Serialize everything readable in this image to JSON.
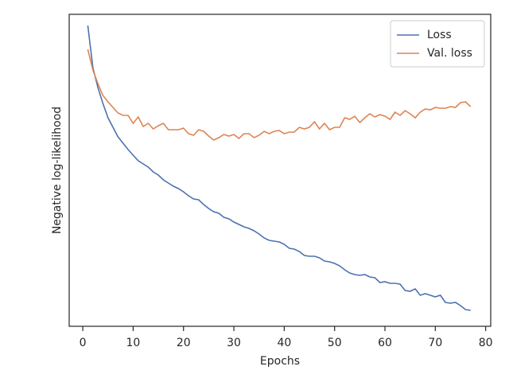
{
  "chart_data": {
    "type": "line",
    "xlabel": "Epochs",
    "ylabel": "Negative log-likelihood",
    "x": [
      1,
      2,
      3,
      4,
      5,
      6,
      7,
      8,
      9,
      10,
      11,
      12,
      13,
      14,
      15,
      16,
      17,
      18,
      19,
      20,
      21,
      22,
      23,
      24,
      25,
      26,
      27,
      28,
      29,
      30,
      31,
      32,
      33,
      34,
      35,
      36,
      37,
      38,
      39,
      40,
      41,
      42,
      43,
      44,
      45,
      46,
      47,
      48,
      49,
      50,
      51,
      52,
      53,
      54,
      55,
      56,
      57,
      58,
      59,
      60,
      61,
      62,
      63,
      64,
      65,
      66,
      67,
      68,
      69,
      70,
      71,
      72,
      73,
      74,
      75,
      76,
      77
    ],
    "series": [
      {
        "name": "Loss",
        "color": "#4c72b0",
        "values": [
          378,
          325,
          300,
          280,
          262,
          250,
          238,
          230,
          222,
          215,
          208,
          204,
          200,
          194,
          190,
          184,
          180,
          176,
          173,
          169,
          164,
          160,
          159,
          153,
          148,
          144,
          142,
          137,
          135,
          131,
          128,
          125,
          123,
          120,
          116,
          111,
          108,
          107,
          106,
          103,
          98,
          97,
          94,
          89,
          88,
          88,
          86,
          82,
          81,
          79,
          76,
          71,
          67,
          65,
          64,
          65,
          62,
          61,
          55,
          56,
          54,
          54,
          53,
          45,
          44,
          47,
          39,
          41,
          39,
          37,
          39,
          30,
          29,
          30,
          26,
          21,
          20
        ]
      },
      {
        "name": "Val. loss",
        "color": "#dd8452",
        "values": [
          348,
          322,
          305,
          290,
          282,
          275,
          268,
          265,
          265,
          255,
          263,
          251,
          255,
          248,
          252,
          255,
          247,
          247,
          247,
          249,
          242,
          240,
          247,
          245,
          239,
          234,
          237,
          241,
          239,
          241,
          236,
          242,
          242,
          237,
          240,
          245,
          242,
          245,
          246,
          242,
          244,
          244,
          250,
          248,
          250,
          257,
          248,
          255,
          247,
          250,
          250,
          262,
          260,
          264,
          256,
          262,
          267,
          263,
          266,
          264,
          260,
          269,
          265,
          271,
          267,
          262,
          269,
          273,
          272,
          275,
          274,
          274,
          276,
          275,
          281,
          282,
          276
        ]
      }
    ],
    "xlim": [
      -2.7,
      81
    ],
    "xticks": [
      0,
      10,
      20,
      30,
      40,
      50,
      60,
      70,
      80
    ],
    "ylim": [
      0,
      392
    ],
    "legend": "upper right"
  }
}
